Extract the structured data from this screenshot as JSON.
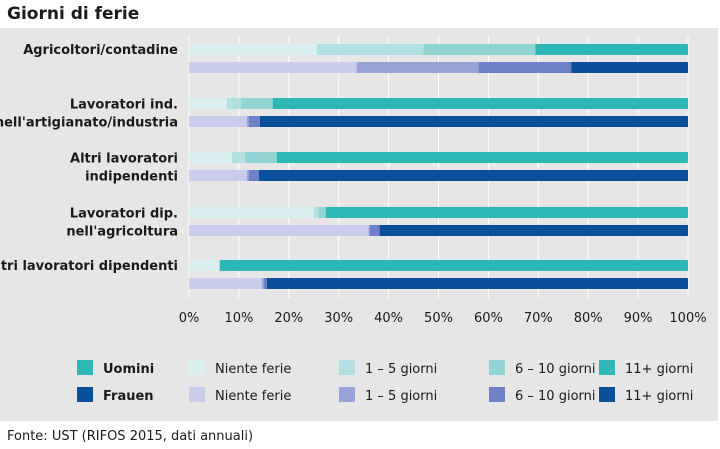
{
  "title": "Giorni di ferie",
  "source": "Fonte: UST (RIFOS 2015, dati annuali)",
  "chart_data": {
    "type": "bar",
    "orientation": "horizontal",
    "stacked": true,
    "xlim": [
      0,
      100
    ],
    "x_ticks": [
      "0%",
      "10%",
      "20%",
      "30%",
      "40%",
      "50%",
      "60%",
      "70%",
      "80%",
      "90%",
      "100%"
    ],
    "categories": [
      [
        "Agricoltori/contadine"
      ],
      [
        "Lavoratori ind.",
        "nell'artigianato/industria"
      ],
      [
        "Altri lavoratori",
        "indipendenti"
      ],
      [
        "Lavoratori dip.",
        "nell'agricoltura"
      ],
      [
        "Altri lavoratori dipendenti"
      ]
    ],
    "segments": [
      "Niente ferie",
      "1 – 5 giorni",
      "6 – 10 giorni",
      "11+ giorni"
    ],
    "groups": [
      {
        "name": "Uomini",
        "colors": [
          "#d9eff0",
          "#b2e0e0",
          "#92d3d3",
          "#2db8b6"
        ],
        "values": [
          [
            25.6,
            21.4,
            22.4,
            30.6
          ],
          [
            7.6,
            2.8,
            6.4,
            83.2
          ],
          [
            8.6,
            2.6,
            6.4,
            82.4
          ],
          [
            25.0,
            1.0,
            1.4,
            72.6
          ],
          [
            6.0,
            0.2,
            0.0,
            93.8
          ]
        ]
      },
      {
        "name": "Frauen",
        "colors": [
          "#c9cdeb",
          "#9aa3d8",
          "#6f82c8",
          "#0a4f9a"
        ],
        "values": [
          [
            33.6,
            24.4,
            18.6,
            23.4
          ],
          [
            11.6,
            0.4,
            2.2,
            85.8
          ],
          [
            11.6,
            0.4,
            2.0,
            86.0
          ],
          [
            36.0,
            0.2,
            2.0,
            61.8
          ],
          [
            14.6,
            0.4,
            0.6,
            84.4
          ]
        ]
      }
    ],
    "legend": {
      "position": "bottom",
      "group_labels": [
        "Uomini",
        "Frauen"
      ],
      "rows": [
        [
          "Niente ferie",
          "1 – 5 giorni",
          "6 – 10 giorni",
          "11+ giorni"
        ],
        [
          "Niente ferie",
          "1 – 5 giorni",
          "6 – 10 giorni",
          "11+ giorni"
        ]
      ]
    }
  }
}
